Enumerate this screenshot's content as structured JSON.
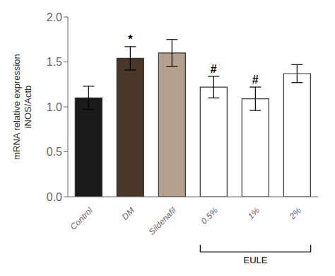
{
  "chart_data": {
    "type": "bar",
    "categories": [
      "Control",
      "DM",
      "Sildenafil",
      "0.5%",
      "1%",
      "2%"
    ],
    "values": [
      1.1,
      1.54,
      1.6,
      1.22,
      1.09,
      1.37
    ],
    "errors": [
      0.13,
      0.13,
      0.15,
      0.12,
      0.13,
      0.1
    ],
    "colors": [
      "#1a1a1a",
      "#4a3728",
      "#b5a090",
      "#ffffff",
      "#ffffff",
      "#ffffff"
    ],
    "significance": [
      null,
      "*",
      null,
      "#",
      "#",
      null
    ],
    "ylabel": "mRNA relative expression\niNOS/Actb",
    "ylim": [
      0,
      2.0
    ],
    "yticks": [
      {
        "value": 0,
        "label": "0.0"
      },
      0.5,
      {
        "value": 1,
        "label": "1.0"
      },
      1.5,
      {
        "value": 2,
        "label": "2.0"
      }
    ],
    "grid": false,
    "annotations": [
      {
        "text": "EULE",
        "from": "0.5%",
        "to": "2%"
      }
    ]
  }
}
